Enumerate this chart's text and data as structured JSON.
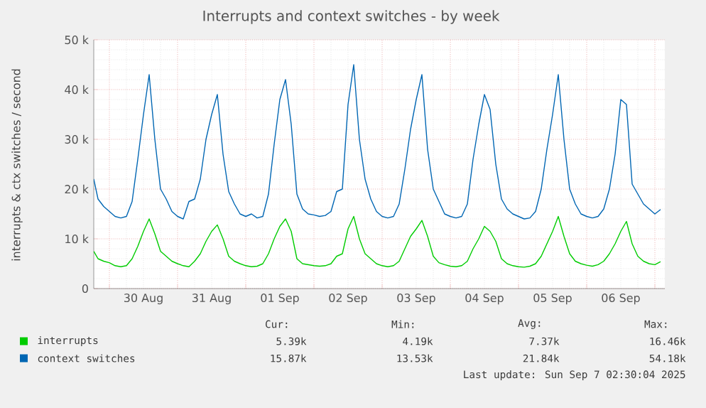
{
  "chart_data": {
    "type": "line",
    "title": "Interrupts and context switches - by week",
    "ylabel": "interrupts & ctx switches / second",
    "x": [
      "2025-08-29T18:30",
      "2025-08-29T20:00",
      "2025-08-29T22:00",
      "2025-08-30T00:00",
      "2025-08-30T02:00",
      "2025-08-30T04:00",
      "2025-08-30T06:00",
      "2025-08-30T08:00",
      "2025-08-30T10:00",
      "2025-08-30T12:00",
      "2025-08-30T14:00",
      "2025-08-30T16:00",
      "2025-08-30T18:00",
      "2025-08-30T20:00",
      "2025-08-30T22:00",
      "2025-08-31T00:00",
      "2025-08-31T02:00",
      "2025-08-31T04:00",
      "2025-08-31T06:00",
      "2025-08-31T08:00",
      "2025-08-31T10:00",
      "2025-08-31T12:00",
      "2025-08-31T14:00",
      "2025-08-31T16:00",
      "2025-08-31T18:00",
      "2025-08-31T20:00",
      "2025-08-31T22:00",
      "2025-09-01T00:00",
      "2025-09-01T02:00",
      "2025-09-01T04:00",
      "2025-09-01T06:00",
      "2025-09-01T08:00",
      "2025-09-01T10:00",
      "2025-09-01T12:00",
      "2025-09-01T14:00",
      "2025-09-01T16:00",
      "2025-09-01T18:00",
      "2025-09-01T20:00",
      "2025-09-01T22:00",
      "2025-09-02T00:00",
      "2025-09-02T02:00",
      "2025-09-02T04:00",
      "2025-09-02T06:00",
      "2025-09-02T08:00",
      "2025-09-02T10:00",
      "2025-09-02T12:00",
      "2025-09-02T14:00",
      "2025-09-02T16:00",
      "2025-09-02T18:00",
      "2025-09-02T20:00",
      "2025-09-02T22:00",
      "2025-09-03T00:00",
      "2025-09-03T02:00",
      "2025-09-03T04:00",
      "2025-09-03T06:00",
      "2025-09-03T08:00",
      "2025-09-03T10:00",
      "2025-09-03T12:00",
      "2025-09-03T14:00",
      "2025-09-03T16:00",
      "2025-09-03T18:00",
      "2025-09-03T20:00",
      "2025-09-03T22:00",
      "2025-09-04T00:00",
      "2025-09-04T02:00",
      "2025-09-04T04:00",
      "2025-09-04T06:00",
      "2025-09-04T08:00",
      "2025-09-04T10:00",
      "2025-09-04T12:00",
      "2025-09-04T14:00",
      "2025-09-04T16:00",
      "2025-09-04T18:00",
      "2025-09-04T20:00",
      "2025-09-04T22:00",
      "2025-09-05T00:00",
      "2025-09-05T02:00",
      "2025-09-05T04:00",
      "2025-09-05T06:00",
      "2025-09-05T08:00",
      "2025-09-05T10:00",
      "2025-09-05T12:00",
      "2025-09-05T14:00",
      "2025-09-05T16:00",
      "2025-09-05T18:00",
      "2025-09-05T20:00",
      "2025-09-05T22:00",
      "2025-09-06T00:00",
      "2025-09-06T02:00",
      "2025-09-06T04:00",
      "2025-09-06T06:00",
      "2025-09-06T08:00",
      "2025-09-06T10:00",
      "2025-09-06T12:00",
      "2025-09-06T14:00",
      "2025-09-06T16:00",
      "2025-09-06T18:00",
      "2025-09-06T20:00",
      "2025-09-06T22:00",
      "2025-09-07T00:00",
      "2025-09-07T02:00"
    ],
    "series": [
      {
        "name": "interrupts",
        "color": "#00cc00",
        "values": [
          7500,
          6000,
          5500,
          5200,
          4600,
          4400,
          4600,
          6000,
          8500,
          11500,
          14000,
          11000,
          7500,
          6500,
          5500,
          5000,
          4600,
          4400,
          5500,
          7000,
          9500,
          11500,
          12800,
          10000,
          6500,
          5500,
          5000,
          4600,
          4400,
          4500,
          5000,
          7000,
          10000,
          12500,
          14000,
          11500,
          6000,
          5000,
          4800,
          4600,
          4500,
          4600,
          5000,
          6500,
          7000,
          12000,
          14500,
          10000,
          7000,
          6000,
          5000,
          4600,
          4400,
          4600,
          5500,
          8000,
          10500,
          12000,
          13700,
          10500,
          6500,
          5200,
          4800,
          4500,
          4400,
          4600,
          5500,
          8000,
          10000,
          12500,
          11500,
          9500,
          6000,
          5000,
          4600,
          4400,
          4300,
          4500,
          5000,
          6500,
          9000,
          11500,
          14500,
          10500,
          7000,
          5500,
          5000,
          4700,
          4500,
          4800,
          5500,
          7000,
          9000,
          11500,
          13500,
          9000,
          6500,
          5500,
          5000,
          4800,
          5400
        ]
      },
      {
        "name": "context switches",
        "color": "#0066b3",
        "values": [
          22000,
          18000,
          16500,
          15500,
          14500,
          14200,
          14500,
          17500,
          26000,
          35000,
          43000,
          30000,
          20000,
          18000,
          15500,
          14500,
          14000,
          17500,
          18000,
          22000,
          30000,
          35000,
          39000,
          27000,
          19500,
          17000,
          15000,
          14500,
          15000,
          14200,
          14500,
          19000,
          29000,
          38000,
          42000,
          33000,
          19000,
          16000,
          15000,
          14800,
          14500,
          14700,
          15500,
          19500,
          20000,
          37000,
          45000,
          30000,
          22000,
          18000,
          15500,
          14500,
          14200,
          14500,
          17000,
          24000,
          32000,
          38000,
          43000,
          28000,
          20000,
          17500,
          15000,
          14500,
          14200,
          14500,
          17000,
          26000,
          33000,
          39000,
          36000,
          25000,
          18000,
          16000,
          15000,
          14500,
          14000,
          14200,
          15500,
          20000,
          28000,
          35000,
          43000,
          30000,
          20000,
          17000,
          15000,
          14500,
          14200,
          14500,
          16000,
          20000,
          27000,
          38000,
          37000,
          21000,
          19000,
          17000,
          16000,
          15000,
          15900
        ]
      }
    ],
    "xlim": [
      "2025-08-29T18:30",
      "2025-09-07T03:30"
    ],
    "xticks": [
      {
        "value": "2025-08-30T00:00",
        "label": null
      },
      {
        "value": "2025-08-30T12:00",
        "label": "30 Aug"
      },
      {
        "value": "2025-08-31T00:00",
        "label": null
      },
      {
        "value": "2025-08-31T12:00",
        "label": "31 Aug"
      },
      {
        "value": "2025-09-01T00:00",
        "label": null
      },
      {
        "value": "2025-09-01T12:00",
        "label": "01 Sep"
      },
      {
        "value": "2025-09-02T00:00",
        "label": null
      },
      {
        "value": "2025-09-02T12:00",
        "label": "02 Sep"
      },
      {
        "value": "2025-09-03T00:00",
        "label": null
      },
      {
        "value": "2025-09-03T12:00",
        "label": "03 Sep"
      },
      {
        "value": "2025-09-04T00:00",
        "label": null
      },
      {
        "value": "2025-09-04T12:00",
        "label": "04 Sep"
      },
      {
        "value": "2025-09-05T00:00",
        "label": null
      },
      {
        "value": "2025-09-05T12:00",
        "label": "05 Sep"
      },
      {
        "value": "2025-09-06T00:00",
        "label": null
      },
      {
        "value": "2025-09-06T12:00",
        "label": "06 Sep"
      },
      {
        "value": "2025-09-07T00:00",
        "label": null
      }
    ],
    "ylim": [
      0,
      50000
    ],
    "yticks": [
      {
        "value": 0,
        "label": "0"
      },
      {
        "value": 10000,
        "label": "10 k"
      },
      {
        "value": 20000,
        "label": "20 k"
      },
      {
        "value": 30000,
        "label": "30 k"
      },
      {
        "value": 40000,
        "label": "40 k"
      },
      {
        "value": 50000,
        "label": "50 k"
      }
    ],
    "grid": true,
    "legend": "bottom",
    "marker": "none",
    "line_style": "solid",
    "annotations": [
      "Cur:",
      "Min:",
      "Avg:",
      "Max:",
      "5.39k",
      "4.19k",
      "7.37k",
      "16.46k",
      "15.87k",
      "13.53k",
      "21.84k",
      "54.18k",
      "Last update: Sun Sep  7 02:30:04 2025"
    ]
  }
}
